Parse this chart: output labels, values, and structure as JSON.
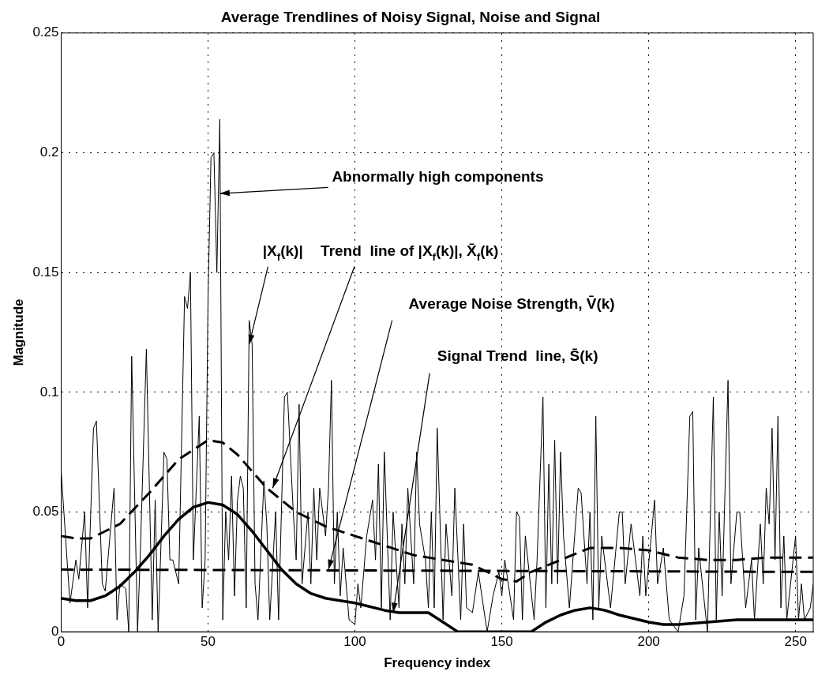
{
  "chart_data": {
    "type": "line",
    "title": "Average Trendlines of Noisy Signal, Noise and Signal",
    "xlabel": "Frequency index",
    "ylabel": "Magnitude",
    "xlim": [
      0,
      256
    ],
    "xticks": [
      0,
      50,
      100,
      150,
      200,
      250
    ],
    "ylim": [
      0,
      0.25
    ],
    "yticks": [
      0,
      0.05,
      0.1,
      0.15,
      0.2,
      0.25
    ],
    "grid": true,
    "legend": false,
    "marker": "none",
    "series": [
      {
        "color": "#000000",
        "line_style": "solid",
        "x": [
          0,
          2,
          3,
          5,
          6,
          8,
          9,
          11,
          12,
          14,
          15,
          18,
          19,
          20,
          22,
          23,
          24,
          26,
          27,
          29,
          31,
          32,
          33,
          35,
          36,
          37,
          38,
          40,
          42,
          43,
          44,
          45,
          47,
          48,
          49,
          50,
          51,
          52,
          53,
          54,
          55,
          56,
          57,
          58,
          59,
          60,
          61,
          62,
          63,
          64,
          65,
          66,
          67,
          69,
          70,
          71,
          73,
          74,
          76,
          77,
          79,
          80,
          81,
          82,
          84,
          85,
          86,
          87,
          88,
          90,
          91,
          92,
          93,
          94,
          95,
          96,
          98,
          100,
          101,
          102,
          104,
          106,
          107,
          108,
          109,
          110,
          112,
          113,
          115,
          116,
          117,
          118,
          120,
          121,
          122,
          124,
          125,
          126,
          127,
          128,
          130,
          131,
          133,
          134,
          136,
          137,
          138,
          140,
          142,
          145,
          147,
          149,
          150,
          151,
          154,
          155,
          156,
          157,
          158,
          161,
          162,
          164,
          165,
          166,
          167,
          168,
          169,
          170,
          171,
          173,
          176,
          177,
          179,
          180,
          181,
          182,
          183,
          184,
          187,
          190,
          191,
          192,
          194,
          197,
          198,
          199,
          202,
          203,
          205,
          207,
          210,
          212,
          214,
          215,
          216,
          217,
          220,
          222,
          223,
          224,
          225,
          226,
          227,
          228,
          230,
          231,
          233,
          235,
          236,
          238,
          239,
          240,
          241,
          242,
          243,
          244,
          245,
          246,
          247,
          250,
          251,
          252,
          253,
          255,
          256
        ],
        "values": [
          0.067,
          0.03,
          0.012,
          0.03,
          0.022,
          0.05,
          0.01,
          0.085,
          0.088,
          0.02,
          0.017,
          0.06,
          0.005,
          0.02,
          0.018,
          0,
          0.115,
          0,
          0.035,
          0.118,
          0.005,
          0.055,
          0,
          0.075,
          0.072,
          0.03,
          0.03,
          0.02,
          0.14,
          0.135,
          0.15,
          0.03,
          0.09,
          0.01,
          0.03,
          0.14,
          0.198,
          0.2,
          0.15,
          0.214,
          0.005,
          0.05,
          0.03,
          0.065,
          0.015,
          0.055,
          0.065,
          0.06,
          0.01,
          0.13,
          0.12,
          0.02,
          0.005,
          0.063,
          0.045,
          0.005,
          0.05,
          0.005,
          0.098,
          0.1,
          0.05,
          0.03,
          0.095,
          0.02,
          0.05,
          0.02,
          0.06,
          0.03,
          0.06,
          0.04,
          0.06,
          0.105,
          0.02,
          0.05,
          0.015,
          0.035,
          0.005,
          0.003,
          0.02,
          0.01,
          0.04,
          0.055,
          0.03,
          0.07,
          0.01,
          0.075,
          0.005,
          0.05,
          0.01,
          0.045,
          0.02,
          0.06,
          0.02,
          0.075,
          0.045,
          0.03,
          0.01,
          0.05,
          0.01,
          0.085,
          0.005,
          0.045,
          0.015,
          0.06,
          0.005,
          0.045,
          0.01,
          0.008,
          0.025,
          0,
          0.015,
          0.025,
          0.015,
          0.03,
          0.005,
          0.05,
          0.048,
          0.005,
          0.04,
          0.005,
          0.03,
          0.098,
          0.01,
          0.07,
          0.02,
          0.08,
          0.02,
          0.075,
          0.04,
          0.01,
          0.06,
          0.058,
          0.02,
          0.05,
          0.005,
          0.09,
          0.01,
          0.04,
          0.01,
          0.05,
          0.05,
          0.02,
          0.045,
          0.015,
          0.04,
          0.015,
          0.055,
          0.02,
          0.035,
          0.005,
          0,
          0.015,
          0.09,
          0.092,
          0.005,
          0.035,
          0,
          0.098,
          0.005,
          0.05,
          0.015,
          0.06,
          0.105,
          0.02,
          0.05,
          0.05,
          0.01,
          0.03,
          0.005,
          0.045,
          0.02,
          0.06,
          0.045,
          0.085,
          0.03,
          0.09,
          0.01,
          0.04,
          0.005,
          0.04,
          0.005,
          0.02,
          0.005,
          0.01,
          0.02
        ]
      },
      {
        "color": "#000000",
        "line_style": "dashed",
        "x": [
          0,
          5,
          10,
          20,
          30,
          40,
          50,
          55,
          60,
          70,
          80,
          90,
          100,
          110,
          120,
          130,
          140,
          150,
          155,
          160,
          170,
          180,
          190,
          200,
          210,
          220,
          230,
          240,
          250,
          256
        ],
        "values": [
          0.04,
          0.039,
          0.039,
          0.045,
          0.058,
          0.072,
          0.08,
          0.079,
          0.074,
          0.06,
          0.05,
          0.044,
          0.04,
          0.036,
          0.032,
          0.03,
          0.028,
          0.022,
          0.021,
          0.025,
          0.03,
          0.035,
          0.035,
          0.034,
          0.031,
          0.03,
          0.03,
          0.031,
          0.031,
          0.031
        ]
      },
      {
        "color": "#000000",
        "line_style": "dashed",
        "x": [
          0,
          256
        ],
        "values": [
          0.026,
          0.025
        ]
      },
      {
        "color": "#000000",
        "line_style": "solid",
        "x": [
          0,
          5,
          10,
          15,
          20,
          25,
          30,
          35,
          40,
          45,
          50,
          55,
          60,
          65,
          70,
          75,
          80,
          85,
          90,
          100,
          110,
          115,
          120,
          125,
          130,
          135,
          140,
          160,
          165,
          170,
          175,
          180,
          185,
          190,
          200,
          205,
          210,
          220,
          230,
          240,
          256
        ],
        "values": [
          0.014,
          0.013,
          0.013,
          0.015,
          0.019,
          0.025,
          0.032,
          0.04,
          0.047,
          0.052,
          0.054,
          0.053,
          0.049,
          0.042,
          0.034,
          0.026,
          0.02,
          0.016,
          0.014,
          0.012,
          0.009,
          0.008,
          0.008,
          0.008,
          0.004,
          0,
          0,
          0,
          0.004,
          0.007,
          0.009,
          0.01,
          0.009,
          0.007,
          0.004,
          0.003,
          0.003,
          0.004,
          0.005,
          0.005,
          0.005
        ]
      }
    ],
    "annotations": [
      {
        "text": "Abnormally high components",
        "x": 54,
        "y": 0.183
      },
      {
        "text": "|X$_{f}$(k)|",
        "x": 64,
        "y": 0.12
      },
      {
        "text": "Trend  line of |X$_{f}$(k)|, X̄$_{f}$(k)",
        "x": 72,
        "y": 0.06
      },
      {
        "text": "Average Noise Strength, V̄(k)",
        "x": 91,
        "y": 0.026
      },
      {
        "text": "Signal Trend  line, S̄(k)",
        "x": 113,
        "y": 0.008
      }
    ]
  }
}
